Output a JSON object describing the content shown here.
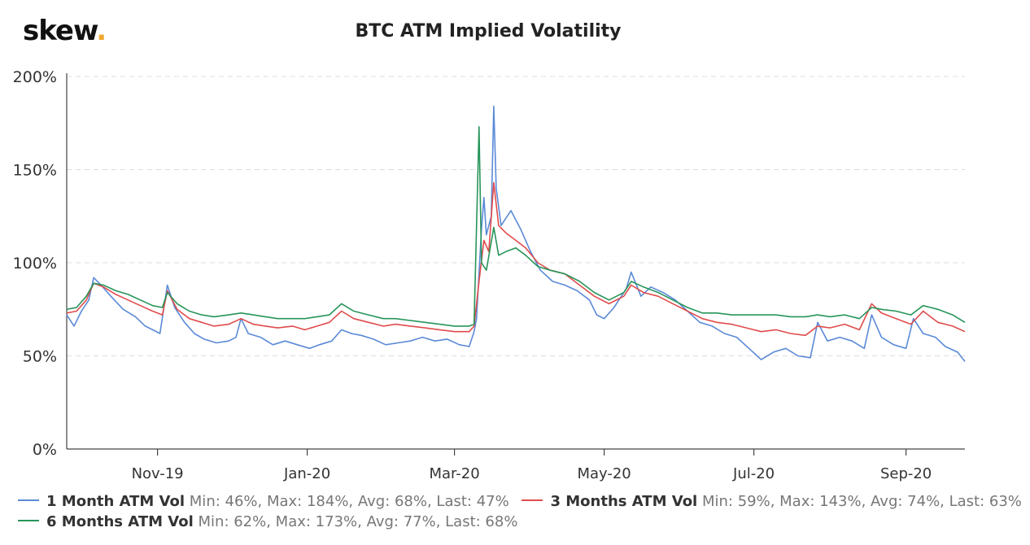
{
  "brand": {
    "logo_text": "skew",
    "logo_dot": ".",
    "accent": "#f0a830"
  },
  "chart_data": {
    "type": "line",
    "title": "BTC ATM Implied Volatility",
    "xlabel": "",
    "ylabel": "",
    "ylim": [
      0,
      200
    ],
    "y_ticks": [
      "0%",
      "50%",
      "100%",
      "150%",
      "200%"
    ],
    "x_ticks": [
      "Nov-19",
      "Jan-20",
      "Mar-20",
      "May-20",
      "Jul-20",
      "Sep-20"
    ],
    "x_range": [
      "2019-09-25",
      "2020-09-25"
    ],
    "grid": true,
    "legend_position": "bottom",
    "series": [
      {
        "name": "1 Month ATM Vol",
        "color": "#5b8ad8",
        "stats": "Min: 46%, Max: 184%, Avg: 68%, Last: 47%",
        "points": [
          [
            "2019-09-25",
            72
          ],
          [
            "2019-09-28",
            66
          ],
          [
            "2019-10-01",
            74
          ],
          [
            "2019-10-04",
            80
          ],
          [
            "2019-10-06",
            92
          ],
          [
            "2019-10-09",
            88
          ],
          [
            "2019-10-13",
            82
          ],
          [
            "2019-10-18",
            75
          ],
          [
            "2019-10-23",
            71
          ],
          [
            "2019-10-27",
            66
          ],
          [
            "2019-10-30",
            64
          ],
          [
            "2019-11-02",
            62
          ],
          [
            "2019-11-05",
            88
          ],
          [
            "2019-11-08",
            76
          ],
          [
            "2019-11-12",
            68
          ],
          [
            "2019-11-16",
            62
          ],
          [
            "2019-11-20",
            59
          ],
          [
            "2019-11-25",
            57
          ],
          [
            "2019-11-30",
            58
          ],
          [
            "2019-12-03",
            60
          ],
          [
            "2019-12-05",
            70
          ],
          [
            "2019-12-08",
            62
          ],
          [
            "2019-12-13",
            60
          ],
          [
            "2019-12-18",
            56
          ],
          [
            "2019-12-23",
            58
          ],
          [
            "2019-12-28",
            56
          ],
          [
            "2020-01-02",
            54
          ],
          [
            "2020-01-06",
            56
          ],
          [
            "2020-01-11",
            58
          ],
          [
            "2020-01-15",
            64
          ],
          [
            "2020-01-19",
            62
          ],
          [
            "2020-01-23",
            61
          ],
          [
            "2020-01-28",
            59
          ],
          [
            "2020-02-02",
            56
          ],
          [
            "2020-02-07",
            57
          ],
          [
            "2020-02-12",
            58
          ],
          [
            "2020-02-17",
            60
          ],
          [
            "2020-02-22",
            58
          ],
          [
            "2020-02-27",
            59
          ],
          [
            "2020-03-03",
            56
          ],
          [
            "2020-03-07",
            55
          ],
          [
            "2020-03-09",
            63
          ],
          [
            "2020-03-10",
            70
          ],
          [
            "2020-03-12",
            118
          ],
          [
            "2020-03-13",
            135
          ],
          [
            "2020-03-14",
            115
          ],
          [
            "2020-03-16",
            125
          ],
          [
            "2020-03-17",
            184
          ],
          [
            "2020-03-18",
            140
          ],
          [
            "2020-03-20",
            120
          ],
          [
            "2020-03-24",
            128
          ],
          [
            "2020-03-28",
            118
          ],
          [
            "2020-04-01",
            106
          ],
          [
            "2020-04-05",
            96
          ],
          [
            "2020-04-10",
            90
          ],
          [
            "2020-04-15",
            88
          ],
          [
            "2020-04-20",
            85
          ],
          [
            "2020-04-25",
            80
          ],
          [
            "2020-04-28",
            72
          ],
          [
            "2020-05-01",
            70
          ],
          [
            "2020-05-05",
            76
          ],
          [
            "2020-05-10",
            86
          ],
          [
            "2020-05-12",
            95
          ],
          [
            "2020-05-16",
            82
          ],
          [
            "2020-05-20",
            87
          ],
          [
            "2020-05-25",
            84
          ],
          [
            "2020-05-30",
            80
          ],
          [
            "2020-06-04",
            74
          ],
          [
            "2020-06-09",
            68
          ],
          [
            "2020-06-14",
            66
          ],
          [
            "2020-06-19",
            62
          ],
          [
            "2020-06-24",
            60
          ],
          [
            "2020-06-29",
            54
          ],
          [
            "2020-07-04",
            48
          ],
          [
            "2020-07-09",
            52
          ],
          [
            "2020-07-14",
            54
          ],
          [
            "2020-07-19",
            50
          ],
          [
            "2020-07-24",
            49
          ],
          [
            "2020-07-27",
            68
          ],
          [
            "2020-07-31",
            58
          ],
          [
            "2020-08-05",
            60
          ],
          [
            "2020-08-10",
            58
          ],
          [
            "2020-08-15",
            54
          ],
          [
            "2020-08-18",
            72
          ],
          [
            "2020-08-22",
            60
          ],
          [
            "2020-08-27",
            56
          ],
          [
            "2020-09-01",
            54
          ],
          [
            "2020-09-04",
            70
          ],
          [
            "2020-09-08",
            62
          ],
          [
            "2020-09-13",
            60
          ],
          [
            "2020-09-17",
            55
          ],
          [
            "2020-09-22",
            52
          ],
          [
            "2020-09-25",
            47
          ]
        ]
      },
      {
        "name": "3 Months ATM Vol",
        "color": "#e04c4c",
        "stats": "Min: 59%, Max: 143%, Avg: 74%, Last: 63%",
        "points": [
          [
            "2019-09-25",
            73
          ],
          [
            "2019-09-29",
            74
          ],
          [
            "2019-10-03",
            80
          ],
          [
            "2019-10-06",
            89
          ],
          [
            "2019-10-10",
            87
          ],
          [
            "2019-10-15",
            83
          ],
          [
            "2019-10-20",
            80
          ],
          [
            "2019-10-25",
            77
          ],
          [
            "2019-10-30",
            74
          ],
          [
            "2019-11-03",
            72
          ],
          [
            "2019-11-05",
            85
          ],
          [
            "2019-11-09",
            75
          ],
          [
            "2019-11-14",
            70
          ],
          [
            "2019-11-19",
            68
          ],
          [
            "2019-11-24",
            66
          ],
          [
            "2019-11-30",
            67
          ],
          [
            "2019-12-05",
            70
          ],
          [
            "2019-12-10",
            67
          ],
          [
            "2019-12-15",
            66
          ],
          [
            "2019-12-20",
            65
          ],
          [
            "2019-12-26",
            66
          ],
          [
            "2019-12-31",
            64
          ],
          [
            "2020-01-05",
            66
          ],
          [
            "2020-01-10",
            68
          ],
          [
            "2020-01-15",
            74
          ],
          [
            "2020-01-20",
            70
          ],
          [
            "2020-01-26",
            68
          ],
          [
            "2020-02-01",
            66
          ],
          [
            "2020-02-06",
            67
          ],
          [
            "2020-02-12",
            66
          ],
          [
            "2020-02-18",
            65
          ],
          [
            "2020-02-24",
            64
          ],
          [
            "2020-03-01",
            63
          ],
          [
            "2020-03-07",
            63
          ],
          [
            "2020-03-09",
            66
          ],
          [
            "2020-03-11",
            90
          ],
          [
            "2020-03-13",
            112
          ],
          [
            "2020-03-15",
            106
          ],
          [
            "2020-03-17",
            143
          ],
          [
            "2020-03-19",
            120
          ],
          [
            "2020-03-22",
            116
          ],
          [
            "2020-03-26",
            112
          ],
          [
            "2020-03-30",
            108
          ],
          [
            "2020-04-04",
            100
          ],
          [
            "2020-04-09",
            96
          ],
          [
            "2020-04-15",
            94
          ],
          [
            "2020-04-21",
            88
          ],
          [
            "2020-04-27",
            82
          ],
          [
            "2020-05-03",
            78
          ],
          [
            "2020-05-09",
            82
          ],
          [
            "2020-05-12",
            88
          ],
          [
            "2020-05-17",
            84
          ],
          [
            "2020-05-23",
            82
          ],
          [
            "2020-05-29",
            78
          ],
          [
            "2020-06-04",
            74
          ],
          [
            "2020-06-10",
            70
          ],
          [
            "2020-06-16",
            68
          ],
          [
            "2020-06-22",
            67
          ],
          [
            "2020-06-28",
            65
          ],
          [
            "2020-07-04",
            63
          ],
          [
            "2020-07-10",
            64
          ],
          [
            "2020-07-16",
            62
          ],
          [
            "2020-07-22",
            61
          ],
          [
            "2020-07-27",
            66
          ],
          [
            "2020-08-01",
            65
          ],
          [
            "2020-08-07",
            67
          ],
          [
            "2020-08-13",
            64
          ],
          [
            "2020-08-18",
            78
          ],
          [
            "2020-08-22",
            73
          ],
          [
            "2020-08-28",
            70
          ],
          [
            "2020-09-03",
            67
          ],
          [
            "2020-09-08",
            74
          ],
          [
            "2020-09-14",
            68
          ],
          [
            "2020-09-20",
            66
          ],
          [
            "2020-09-25",
            63
          ]
        ]
      },
      {
        "name": "6 Months ATM Vol",
        "color": "#27955a",
        "stats": "Min: 62%, Max: 173%, Avg: 77%, Last: 68%",
        "points": [
          [
            "2019-09-25",
            75
          ],
          [
            "2019-09-29",
            76
          ],
          [
            "2019-10-03",
            82
          ],
          [
            "2019-10-06",
            89
          ],
          [
            "2019-10-10",
            88
          ],
          [
            "2019-10-15",
            85
          ],
          [
            "2019-10-20",
            83
          ],
          [
            "2019-10-25",
            80
          ],
          [
            "2019-10-30",
            77
          ],
          [
            "2019-11-03",
            76
          ],
          [
            "2019-11-05",
            84
          ],
          [
            "2019-11-09",
            78
          ],
          [
            "2019-11-14",
            74
          ],
          [
            "2019-11-19",
            72
          ],
          [
            "2019-11-24",
            71
          ],
          [
            "2019-11-30",
            72
          ],
          [
            "2019-12-05",
            73
          ],
          [
            "2019-12-10",
            72
          ],
          [
            "2019-12-15",
            71
          ],
          [
            "2019-12-20",
            70
          ],
          [
            "2019-12-26",
            70
          ],
          [
            "2019-12-31",
            70
          ],
          [
            "2020-01-05",
            71
          ],
          [
            "2020-01-10",
            72
          ],
          [
            "2020-01-15",
            78
          ],
          [
            "2020-01-20",
            74
          ],
          [
            "2020-01-26",
            72
          ],
          [
            "2020-02-01",
            70
          ],
          [
            "2020-02-06",
            70
          ],
          [
            "2020-02-12",
            69
          ],
          [
            "2020-02-18",
            68
          ],
          [
            "2020-02-24",
            67
          ],
          [
            "2020-03-01",
            66
          ],
          [
            "2020-03-07",
            66
          ],
          [
            "2020-03-09",
            67
          ],
          [
            "2020-03-11",
            173
          ],
          [
            "2020-03-12",
            100
          ],
          [
            "2020-03-14",
            96
          ],
          [
            "2020-03-17",
            119
          ],
          [
            "2020-03-19",
            104
          ],
          [
            "2020-03-22",
            106
          ],
          [
            "2020-03-26",
            108
          ],
          [
            "2020-03-30",
            104
          ],
          [
            "2020-04-04",
            98
          ],
          [
            "2020-04-09",
            96
          ],
          [
            "2020-04-15",
            94
          ],
          [
            "2020-04-21",
            90
          ],
          [
            "2020-04-27",
            84
          ],
          [
            "2020-05-03",
            80
          ],
          [
            "2020-05-09",
            84
          ],
          [
            "2020-05-12",
            90
          ],
          [
            "2020-05-17",
            87
          ],
          [
            "2020-05-23",
            84
          ],
          [
            "2020-05-29",
            80
          ],
          [
            "2020-06-04",
            76
          ],
          [
            "2020-06-10",
            73
          ],
          [
            "2020-06-16",
            73
          ],
          [
            "2020-06-22",
            72
          ],
          [
            "2020-06-28",
            72
          ],
          [
            "2020-07-04",
            72
          ],
          [
            "2020-07-10",
            72
          ],
          [
            "2020-07-16",
            71
          ],
          [
            "2020-07-22",
            71
          ],
          [
            "2020-07-27",
            72
          ],
          [
            "2020-08-01",
            71
          ],
          [
            "2020-08-07",
            72
          ],
          [
            "2020-08-13",
            70
          ],
          [
            "2020-08-18",
            76
          ],
          [
            "2020-08-22",
            75
          ],
          [
            "2020-08-28",
            74
          ],
          [
            "2020-09-03",
            72
          ],
          [
            "2020-09-08",
            77
          ],
          [
            "2020-09-14",
            75
          ],
          [
            "2020-09-20",
            72
          ],
          [
            "2020-09-25",
            68
          ]
        ]
      }
    ]
  }
}
